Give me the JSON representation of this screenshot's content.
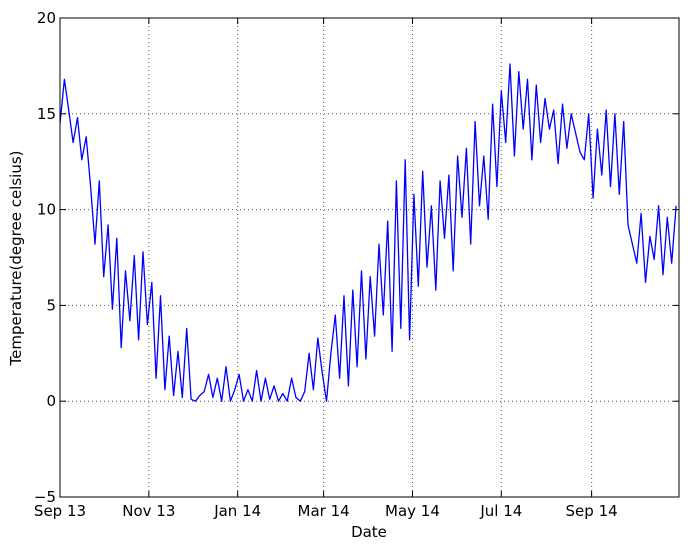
{
  "chart_data": {
    "type": "line",
    "title": "",
    "xlabel": "Date",
    "ylabel": "Temperature(degree celsius)",
    "xlim": [
      "2013-09-01",
      "2014-10-31"
    ],
    "ylim": [
      -5,
      20
    ],
    "grid": true,
    "grid_style": "dotted",
    "x_ticks": [
      {
        "value": "2013-09-01",
        "label": "Sep 13"
      },
      {
        "value": "2013-11-01",
        "label": "Nov 13"
      },
      {
        "value": "2014-01-01",
        "label": "Jan 14"
      },
      {
        "value": "2014-03-01",
        "label": "Mar 14"
      },
      {
        "value": "2014-05-01",
        "label": "May 14"
      },
      {
        "value": "2014-07-01",
        "label": "Jul 14"
      },
      {
        "value": "2014-09-01",
        "label": "Sep 14"
      }
    ],
    "y_ticks": [
      {
        "value": -5,
        "label": "−5"
      },
      {
        "value": 0,
        "label": "0"
      },
      {
        "value": 5,
        "label": "5"
      },
      {
        "value": 10,
        "label": "10"
      },
      {
        "value": 15,
        "label": "15"
      },
      {
        "value": 20,
        "label": "20"
      }
    ],
    "series": [
      {
        "color": "#0000ff",
        "x": [
          "2013-09-01",
          "2013-09-04",
          "2013-09-07",
          "2013-09-10",
          "2013-09-13",
          "2013-09-16",
          "2013-09-19",
          "2013-09-22",
          "2013-09-25",
          "2013-09-28",
          "2013-10-01",
          "2013-10-04",
          "2013-10-07",
          "2013-10-10",
          "2013-10-13",
          "2013-10-16",
          "2013-10-19",
          "2013-10-22",
          "2013-10-25",
          "2013-10-28",
          "2013-10-31",
          "2013-11-03",
          "2013-11-06",
          "2013-11-09",
          "2013-11-12",
          "2013-11-15",
          "2013-11-18",
          "2013-11-21",
          "2013-11-24",
          "2013-11-27",
          "2013-11-30",
          "2013-12-03",
          "2013-12-06",
          "2013-12-09",
          "2013-12-12",
          "2013-12-15",
          "2013-12-18",
          "2013-12-21",
          "2013-12-24",
          "2013-12-27",
          "2013-12-30",
          "2014-01-02",
          "2014-01-05",
          "2014-01-08",
          "2014-01-11",
          "2014-01-14",
          "2014-01-17",
          "2014-01-20",
          "2014-01-23",
          "2014-01-26",
          "2014-01-29",
          "2014-02-01",
          "2014-02-04",
          "2014-02-07",
          "2014-02-10",
          "2014-02-13",
          "2014-02-16",
          "2014-02-19",
          "2014-02-22",
          "2014-02-25",
          "2014-02-28",
          "2014-03-03",
          "2014-03-06",
          "2014-03-09",
          "2014-03-12",
          "2014-03-15",
          "2014-03-18",
          "2014-03-21",
          "2014-03-24",
          "2014-03-27",
          "2014-03-30",
          "2014-04-02",
          "2014-04-05",
          "2014-04-08",
          "2014-04-11",
          "2014-04-14",
          "2014-04-17",
          "2014-04-20",
          "2014-04-23",
          "2014-04-26",
          "2014-04-29",
          "2014-05-02",
          "2014-05-05",
          "2014-05-08",
          "2014-05-11",
          "2014-05-14",
          "2014-05-17",
          "2014-05-20",
          "2014-05-23",
          "2014-05-26",
          "2014-05-29",
          "2014-06-01",
          "2014-06-04",
          "2014-06-07",
          "2014-06-10",
          "2014-06-13",
          "2014-06-16",
          "2014-06-19",
          "2014-06-22",
          "2014-06-25",
          "2014-06-28",
          "2014-07-01",
          "2014-07-04",
          "2014-07-07",
          "2014-07-10",
          "2014-07-13",
          "2014-07-16",
          "2014-07-19",
          "2014-07-22",
          "2014-07-25",
          "2014-07-28",
          "2014-07-31",
          "2014-08-03",
          "2014-08-06",
          "2014-08-09",
          "2014-08-12",
          "2014-08-15",
          "2014-08-18",
          "2014-08-21",
          "2014-08-24",
          "2014-08-27",
          "2014-08-30",
          "2014-09-02",
          "2014-09-05",
          "2014-09-08",
          "2014-09-11",
          "2014-09-14",
          "2014-09-17",
          "2014-09-20",
          "2014-09-23",
          "2014-09-26",
          "2014-09-29",
          "2014-10-02",
          "2014-10-05",
          "2014-10-08",
          "2014-10-11",
          "2014-10-14",
          "2014-10-17",
          "2014-10-20",
          "2014-10-23",
          "2014-10-26",
          "2014-10-29"
        ],
        "y": [
          14.5,
          16.8,
          15.2,
          13.5,
          14.8,
          12.6,
          13.8,
          11.2,
          8.2,
          11.5,
          6.5,
          9.2,
          4.8,
          8.5,
          2.8,
          6.8,
          4.2,
          7.6,
          3.2,
          7.8,
          4.0,
          6.2,
          1.2,
          5.5,
          0.6,
          3.4,
          0.3,
          2.6,
          0.2,
          3.8,
          0.1,
          0.0,
          0.3,
          0.5,
          1.4,
          0.2,
          1.2,
          0.0,
          1.8,
          0.0,
          0.6,
          1.4,
          0.0,
          0.6,
          0.0,
          1.6,
          0.0,
          1.2,
          0.1,
          0.8,
          0.0,
          0.4,
          0.0,
          1.2,
          0.2,
          0.0,
          0.5,
          2.5,
          0.6,
          3.3,
          1.5,
          0.0,
          2.5,
          4.5,
          1.2,
          5.5,
          0.8,
          5.8,
          1.8,
          6.8,
          2.2,
          6.5,
          3.4,
          8.2,
          4.5,
          9.4,
          2.6,
          11.5,
          3.8,
          12.6,
          3.2,
          10.8,
          6.0,
          12.0,
          7.0,
          10.2,
          5.8,
          11.5,
          8.5,
          11.8,
          6.8,
          12.8,
          9.6,
          13.2,
          8.2,
          14.6,
          10.2,
          12.8,
          9.5,
          15.5,
          11.2,
          16.2,
          13.5,
          17.6,
          12.8,
          17.2,
          14.2,
          16.8,
          12.6,
          16.5,
          13.5,
          15.8,
          14.2,
          15.2,
          12.4,
          15.5,
          13.2,
          15.0,
          14.0,
          13.0,
          12.6,
          15.0,
          10.6,
          14.2,
          11.8,
          15.2,
          11.2,
          15.0,
          10.8,
          14.6,
          9.2,
          8.2,
          7.2,
          9.8,
          6.2,
          8.6,
          7.4,
          10.2,
          6.6,
          9.6,
          7.2,
          10.2
        ]
      }
    ]
  }
}
